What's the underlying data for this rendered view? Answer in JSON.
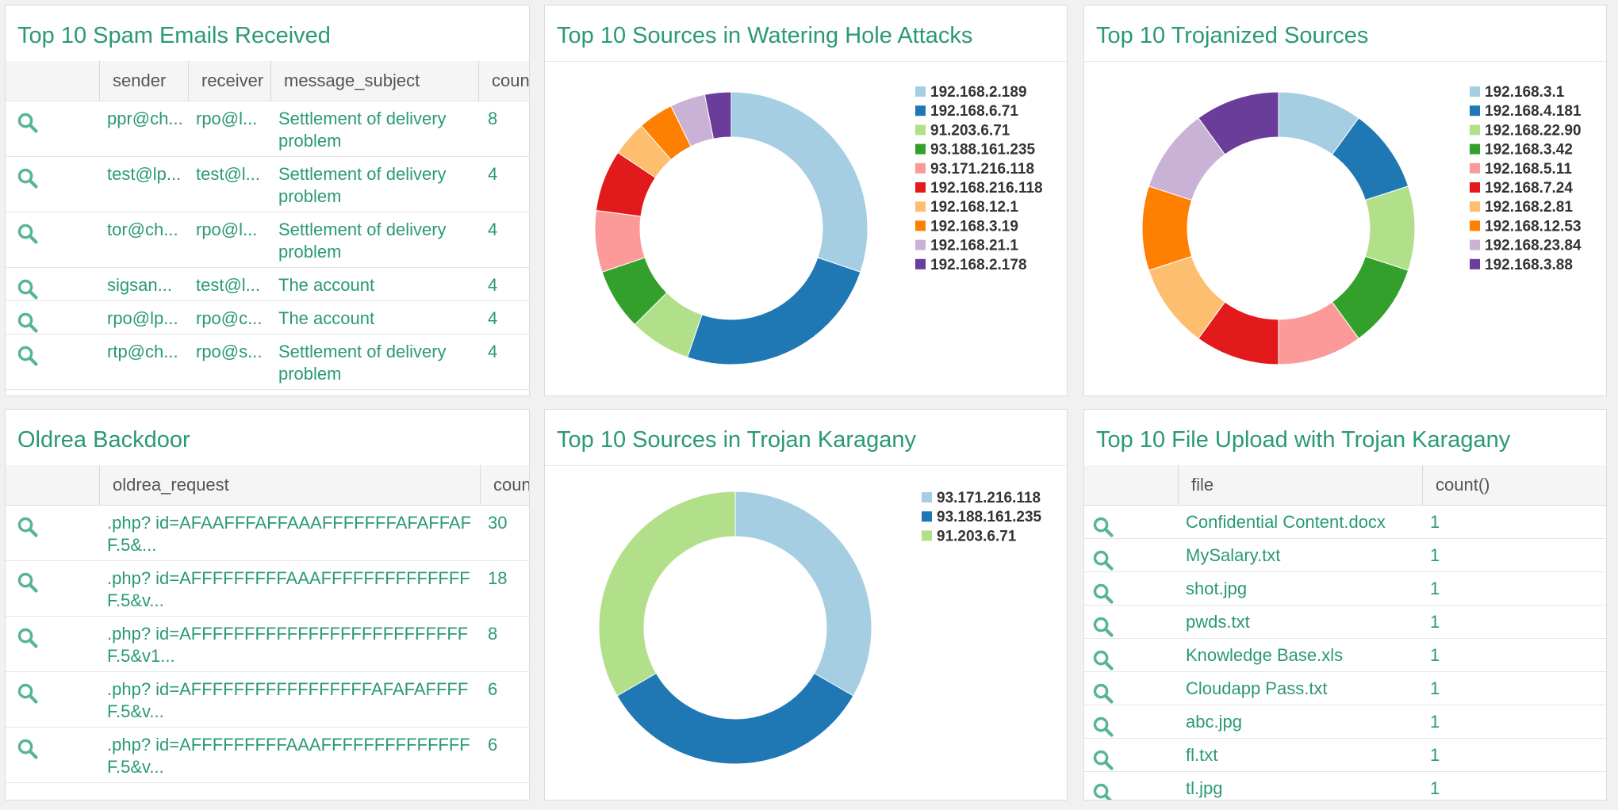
{
  "spam": {
    "title": "Top 10 Spam Emails Received",
    "columns": [
      "sender",
      "receiver",
      "message_subject",
      "count()"
    ],
    "rows": [
      {
        "sender": "ppr@ch...",
        "receiver": "rpo@l...",
        "subject": "Settlement of delivery problem",
        "count": "8"
      },
      {
        "sender": "test@lp...",
        "receiver": "test@l...",
        "subject": "Settlement of delivery problem",
        "count": "4"
      },
      {
        "sender": "tor@ch...",
        "receiver": "rpo@l...",
        "subject": "Settlement of delivery problem",
        "count": "4"
      },
      {
        "sender": "sigsan...",
        "receiver": "test@l...",
        "subject": "The account",
        "count": "4"
      },
      {
        "sender": "rpo@lp...",
        "receiver": "rpo@c...",
        "subject": "The account",
        "count": "4"
      },
      {
        "sender": "rtp@ch...",
        "receiver": "rpo@s...",
        "subject": "Settlement of delivery problem",
        "count": "4"
      }
    ]
  },
  "oldrea": {
    "title": "Oldrea Backdoor",
    "columns": [
      "oldrea_request",
      "count()"
    ],
    "rows": [
      {
        "request": ".php? id=AFAAFFFAFFAAAFFFFFFFAFAFFAFF.5&...",
        "count": "30"
      },
      {
        "request": ".php? id=AFFFFFFFFFAAAFFFFFFFFFFFFFFF.5&v...",
        "count": "18"
      },
      {
        "request": ".php? id=AFFFFFFFFFFFFFFFFFFFFFFFFFFF.5&v1...",
        "count": "8"
      },
      {
        "request": ".php? id=AFFFFFFFFFFFFFFFFFAFAFAFFFFF.5&v...",
        "count": "6"
      },
      {
        "request": ".php? id=AFFFFFFFFFAAAFFFFFFFFFFFFFFF.5&v...",
        "count": "6"
      }
    ]
  },
  "uploads": {
    "title": "Top 10 File Upload with Trojan Karagany",
    "columns": [
      "file",
      "count()"
    ],
    "rows": [
      {
        "file": "Confidential Content.docx",
        "count": "1"
      },
      {
        "file": "MySalary.txt",
        "count": "1"
      },
      {
        "file": "shot.jpg",
        "count": "1"
      },
      {
        "file": "pwds.txt",
        "count": "1"
      },
      {
        "file": "Knowledge Base.xls",
        "count": "1"
      },
      {
        "file": "Cloudapp Pass.txt",
        "count": "1"
      },
      {
        "file": "abc.jpg",
        "count": "1"
      },
      {
        "file": "fl.txt",
        "count": "1"
      },
      {
        "file": "tl.jpg",
        "count": "1"
      }
    ]
  },
  "colors": {
    "accent": "#2a9a70",
    "palette": [
      "#a6cee3",
      "#1f78b4",
      "#b2df8a",
      "#33a02c",
      "#fb9a99",
      "#e31a1c",
      "#fdbf6f",
      "#ff7f00",
      "#cab2d6",
      "#6a3d9a"
    ]
  },
  "chart_data": [
    {
      "id": "watering",
      "type": "pie",
      "title": "Top 10 Sources in Watering Hole Attacks",
      "categories": [
        "192.168.2.189",
        "192.168.6.71",
        "91.203.6.71",
        "93.188.161.235",
        "93.171.216.118",
        "192.168.216.118",
        "192.168.12.1",
        "192.168.3.19",
        "192.168.21.1",
        "192.168.2.178"
      ],
      "values": [
        29,
        24,
        7,
        7,
        7,
        7,
        4,
        4,
        4,
        3
      ],
      "donut": true,
      "legend": "right"
    },
    {
      "id": "trojanized",
      "type": "pie",
      "title": "Top 10 Trojanized Sources",
      "categories": [
        "192.168.3.1",
        "192.168.4.181",
        "192.168.22.90",
        "192.168.3.42",
        "192.168.5.11",
        "192.168.7.24",
        "192.168.2.81",
        "192.168.12.53",
        "192.168.23.84",
        "192.168.3.88"
      ],
      "values": [
        10,
        10,
        10,
        10,
        10,
        10,
        10,
        10,
        10,
        10
      ],
      "donut": true,
      "legend": "right"
    },
    {
      "id": "karagany",
      "type": "pie",
      "title": "Top 10 Sources in Trojan Karagany",
      "categories": [
        "93.171.216.118",
        "93.188.161.235",
        "91.203.6.71"
      ],
      "values": [
        1,
        1,
        1
      ],
      "donut": true,
      "legend": "right"
    }
  ]
}
